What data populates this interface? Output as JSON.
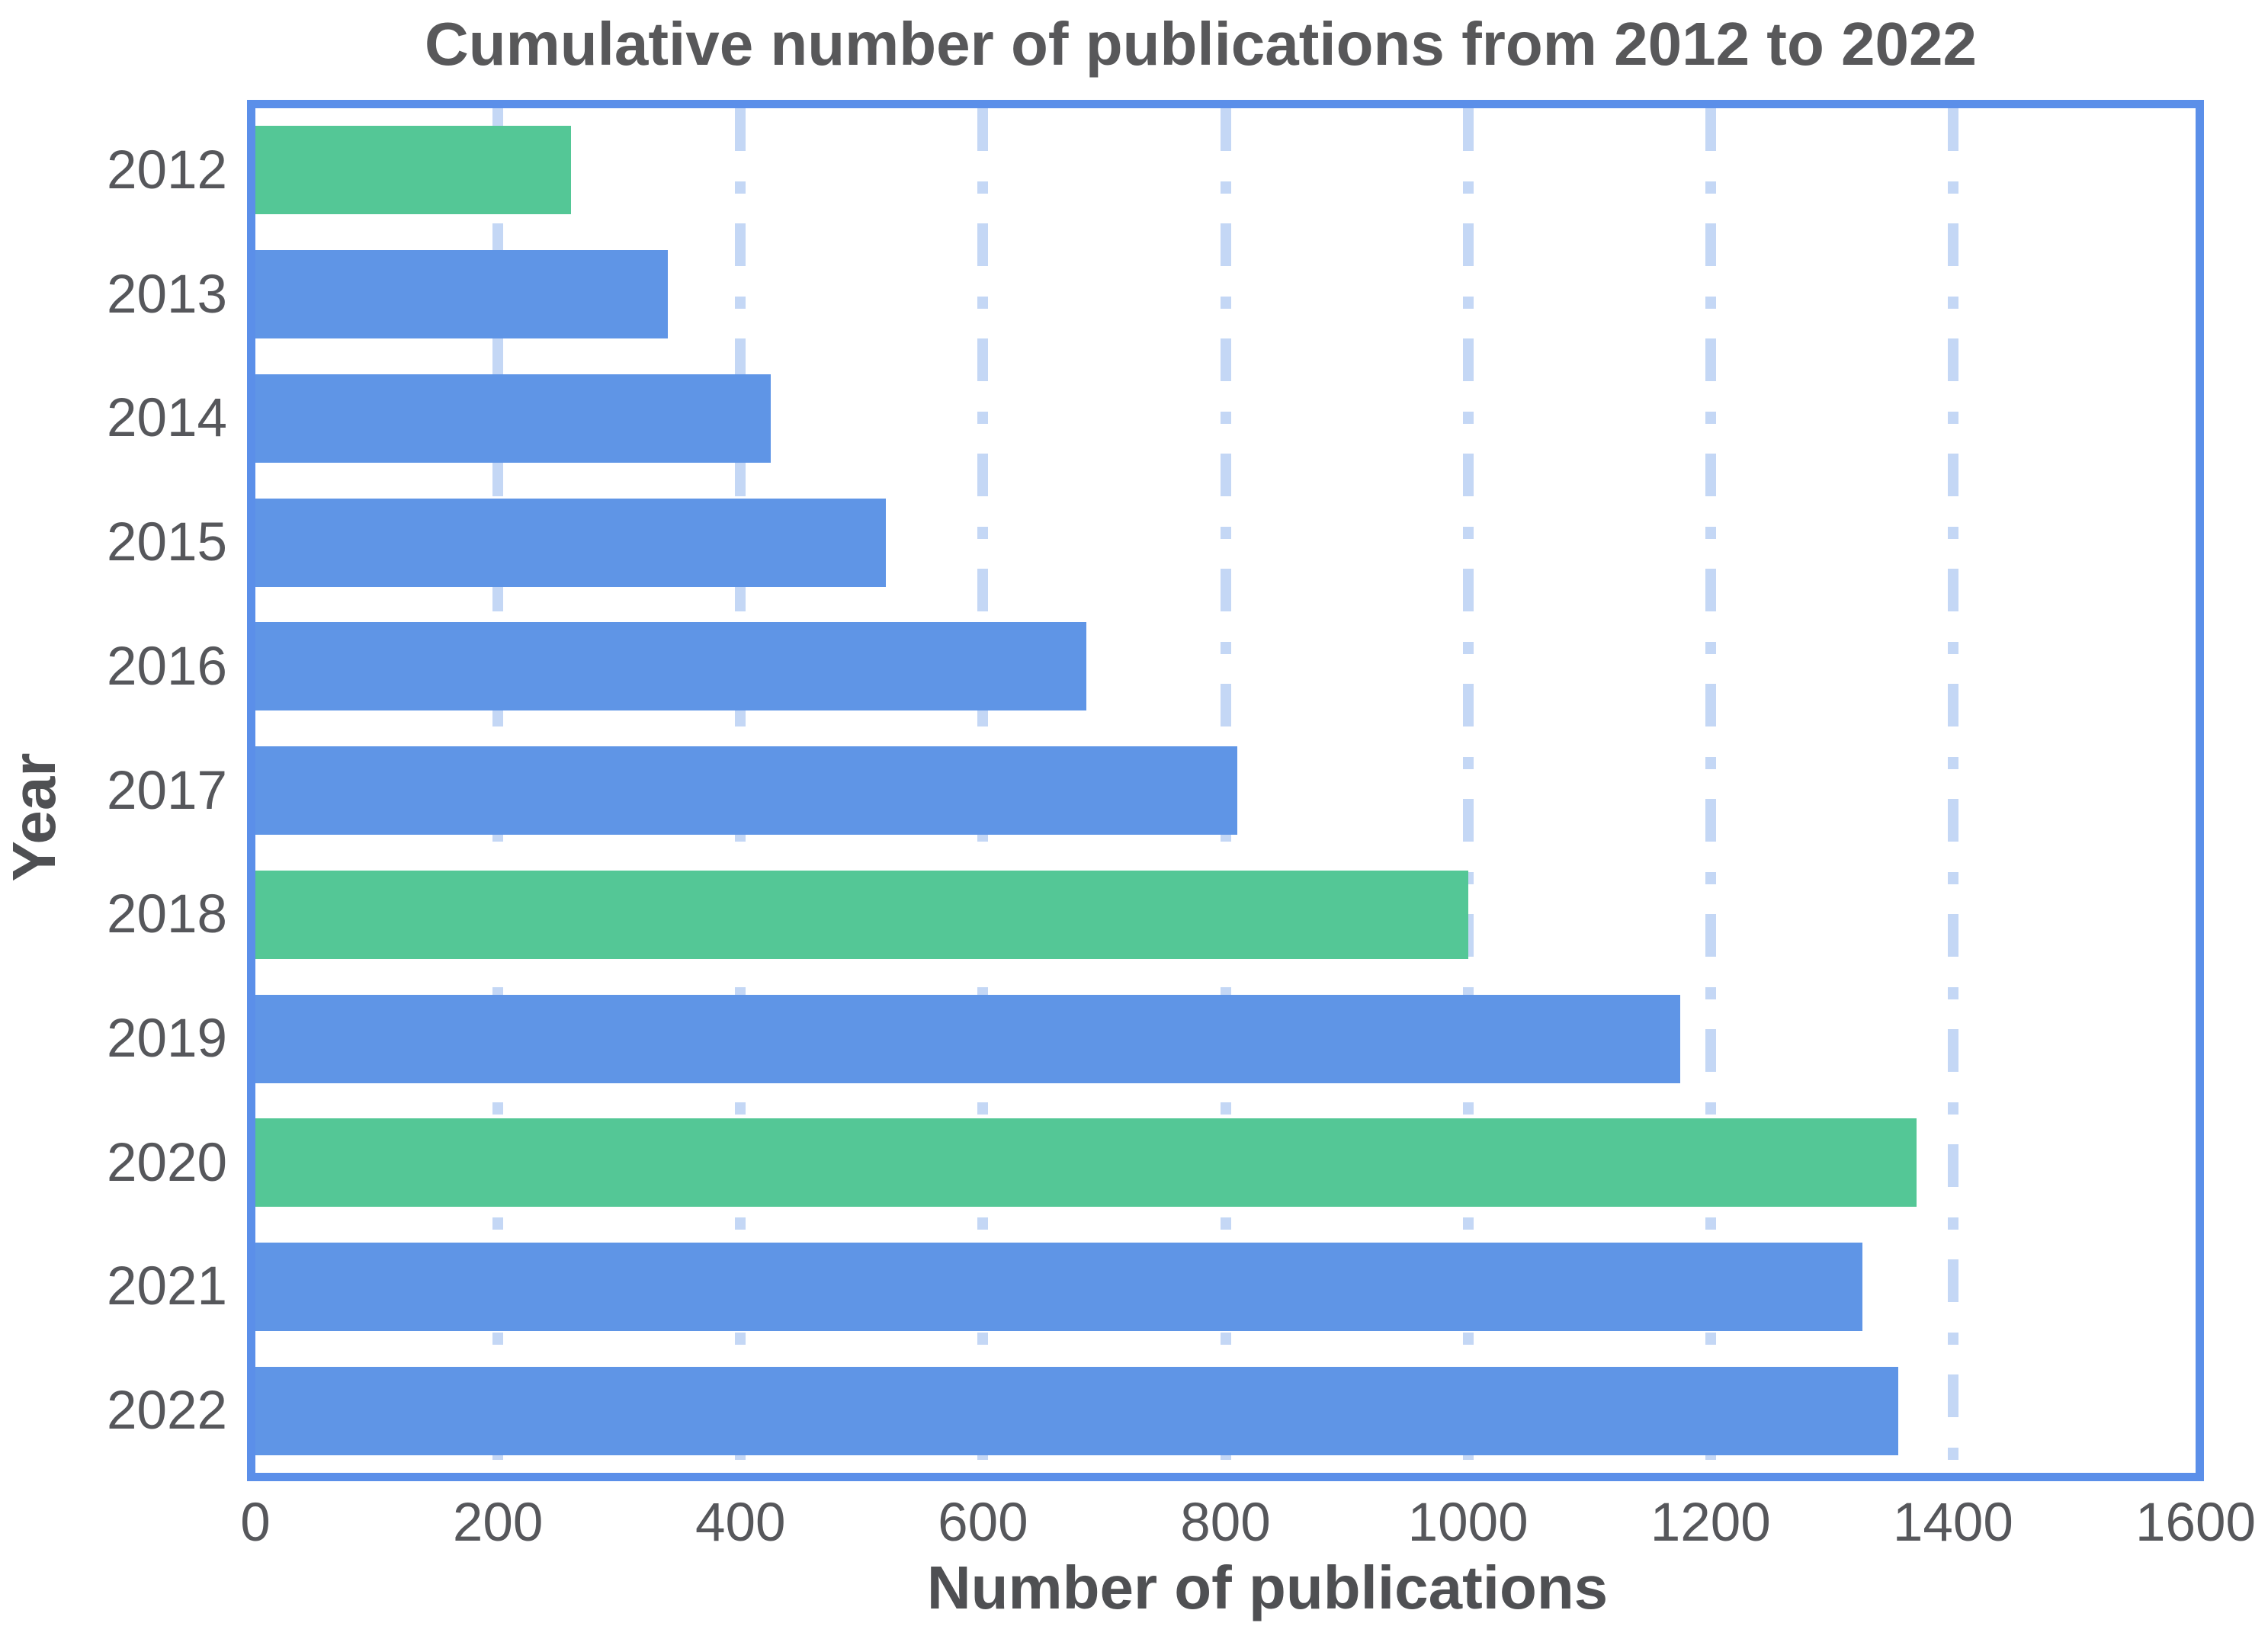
{
  "title": "Cumulative number of publications from 2012 to 2022",
  "x_axis": {
    "label": "Number of publications",
    "ticks": [
      0,
      200,
      400,
      600,
      800,
      1000,
      1200,
      1400,
      1600
    ],
    "gridlines": [
      200,
      400,
      600,
      800,
      1000,
      1200,
      1400
    ],
    "min": 0,
    "max": 1600
  },
  "y_axis": {
    "label": "Year"
  },
  "chart_data": {
    "type": "bar",
    "orientation": "horizontal",
    "title": "Cumulative number of publications from 2012 to 2022",
    "xlabel": "Number of publications",
    "ylabel": "Year",
    "xlim": [
      0,
      1600
    ],
    "grid": "vertical dashed gridlines every 200, drawn behind bars",
    "legend": "none",
    "categories": [
      "2012",
      "2013",
      "2014",
      "2015",
      "2016",
      "2017",
      "2018",
      "2019",
      "2020",
      "2021",
      "2022"
    ],
    "values": [
      260,
      340,
      425,
      520,
      685,
      810,
      1000,
      1175,
      1370,
      1325,
      1355
    ],
    "bar_color_names": [
      "green",
      "blue",
      "blue",
      "blue",
      "blue",
      "blue",
      "green",
      "blue",
      "green",
      "blue",
      "blue"
    ]
  },
  "colors": {
    "bar_blue": "#5F95E6",
    "bar_green": "#54C796",
    "plot_border": "#5B8FE9",
    "gridline": "#C4D7F5",
    "title_text": "#58585A",
    "tick_text": "#56575B",
    "axis_label_text": "#4F5053",
    "background": "#FFFFFF"
  }
}
